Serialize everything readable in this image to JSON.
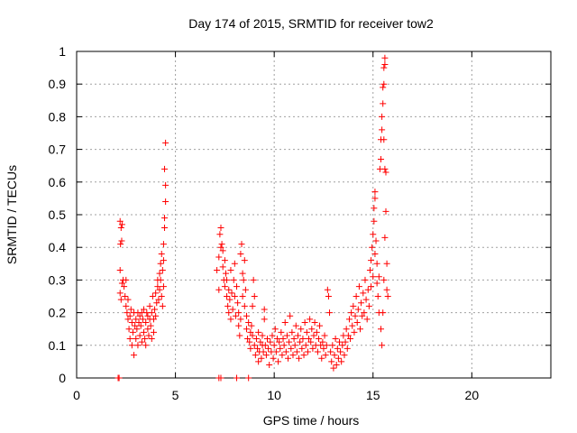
{
  "chart_data": {
    "type": "scatter",
    "title": "Day 174 of 2015, SRMTID for receiver tow2",
    "xlabel": "GPS time / hours",
    "ylabel": "SRMTID / TECUs",
    "xlim": [
      0,
      24
    ],
    "ylim": [
      0,
      1
    ],
    "xticks": [
      0,
      5,
      10,
      15,
      20
    ],
    "yticks": [
      0,
      0.1,
      0.2,
      0.3,
      0.4,
      0.5,
      0.6,
      0.7,
      0.8,
      0.9,
      1
    ],
    "grid": true,
    "marker": "+",
    "color": "#ff0000",
    "series": [
      {
        "name": "SRMTID",
        "points": [
          [
            2.1,
            0.0
          ],
          [
            2.15,
            0.0
          ],
          [
            7.2,
            0.0
          ],
          [
            7.3,
            0.0
          ],
          [
            8.1,
            0.0
          ],
          [
            8.7,
            0.0
          ],
          [
            2.2,
            0.48
          ],
          [
            2.25,
            0.46
          ],
          [
            2.3,
            0.47
          ],
          [
            2.22,
            0.41
          ],
          [
            2.28,
            0.42
          ],
          [
            2.2,
            0.33
          ],
          [
            2.3,
            0.29
          ],
          [
            2.35,
            0.3
          ],
          [
            2.2,
            0.26
          ],
          [
            2.25,
            0.24
          ],
          [
            2.4,
            0.28
          ],
          [
            2.45,
            0.25
          ],
          [
            2.5,
            0.22
          ],
          [
            2.5,
            0.3
          ],
          [
            2.55,
            0.2
          ],
          [
            2.6,
            0.18
          ],
          [
            2.6,
            0.24
          ],
          [
            2.65,
            0.15
          ],
          [
            2.7,
            0.19
          ],
          [
            2.7,
            0.12
          ],
          [
            2.75,
            0.21
          ],
          [
            2.8,
            0.17
          ],
          [
            2.8,
            0.1
          ],
          [
            2.85,
            0.14
          ],
          [
            2.9,
            0.07
          ],
          [
            2.9,
            0.2
          ],
          [
            2.95,
            0.16
          ],
          [
            3.0,
            0.12
          ],
          [
            3.0,
            0.18
          ],
          [
            3.05,
            0.15
          ],
          [
            3.1,
            0.2
          ],
          [
            3.1,
            0.1
          ],
          [
            3.15,
            0.17
          ],
          [
            3.2,
            0.13
          ],
          [
            3.2,
            0.19
          ],
          [
            3.25,
            0.16
          ],
          [
            3.3,
            0.11
          ],
          [
            3.3,
            0.2
          ],
          [
            3.35,
            0.18
          ],
          [
            3.4,
            0.14
          ],
          [
            3.4,
            0.21
          ],
          [
            3.45,
            0.12
          ],
          [
            3.5,
            0.17
          ],
          [
            3.5,
            0.1
          ],
          [
            3.55,
            0.2
          ],
          [
            3.6,
            0.15
          ],
          [
            3.6,
            0.19
          ],
          [
            3.65,
            0.13
          ],
          [
            3.7,
            0.18
          ],
          [
            3.7,
            0.22
          ],
          [
            3.75,
            0.16
          ],
          [
            3.8,
            0.2
          ],
          [
            3.8,
            0.12
          ],
          [
            3.85,
            0.25
          ],
          [
            3.9,
            0.18
          ],
          [
            3.9,
            0.14
          ],
          [
            3.95,
            0.21
          ],
          [
            4.0,
            0.26
          ],
          [
            4.0,
            0.19
          ],
          [
            4.05,
            0.23
          ],
          [
            4.1,
            0.28
          ],
          [
            4.1,
            0.3
          ],
          [
            4.15,
            0.24
          ],
          [
            4.2,
            0.32
          ],
          [
            4.2,
            0.27
          ],
          [
            4.25,
            0.35
          ],
          [
            4.25,
            0.3
          ],
          [
            4.3,
            0.38
          ],
          [
            4.3,
            0.25
          ],
          [
            4.35,
            0.33
          ],
          [
            4.4,
            0.28
          ],
          [
            4.4,
            0.41
          ],
          [
            4.45,
            0.49
          ],
          [
            4.45,
            0.46
          ],
          [
            4.5,
            0.54
          ],
          [
            4.5,
            0.59
          ],
          [
            4.45,
            0.64
          ],
          [
            4.5,
            0.72
          ],
          [
            4.4,
            0.36
          ],
          [
            4.35,
            0.22
          ],
          [
            7.1,
            0.33
          ],
          [
            7.2,
            0.27
          ],
          [
            7.2,
            0.37
          ],
          [
            7.25,
            0.44
          ],
          [
            7.3,
            0.46
          ],
          [
            7.3,
            0.4
          ],
          [
            7.35,
            0.41
          ],
          [
            7.4,
            0.39
          ],
          [
            7.4,
            0.34
          ],
          [
            7.45,
            0.3
          ],
          [
            7.5,
            0.36
          ],
          [
            7.5,
            0.28
          ],
          [
            7.55,
            0.32
          ],
          [
            7.6,
            0.25
          ],
          [
            7.6,
            0.3
          ],
          [
            7.65,
            0.22
          ],
          [
            7.7,
            0.27
          ],
          [
            7.7,
            0.2
          ],
          [
            7.75,
            0.24
          ],
          [
            7.8,
            0.18
          ],
          [
            7.8,
            0.33
          ],
          [
            7.85,
            0.26
          ],
          [
            7.9,
            0.21
          ],
          [
            7.95,
            0.3
          ],
          [
            8.0,
            0.25
          ],
          [
            8.0,
            0.35
          ],
          [
            8.05,
            0.19
          ],
          [
            8.1,
            0.28
          ],
          [
            8.15,
            0.23
          ],
          [
            8.2,
            0.16
          ],
          [
            8.2,
            0.2
          ],
          [
            8.25,
            0.13
          ],
          [
            8.3,
            0.18
          ],
          [
            8.3,
            0.38
          ],
          [
            8.35,
            0.41
          ],
          [
            8.4,
            0.32
          ],
          [
            8.4,
            0.25
          ],
          [
            8.45,
            0.3
          ],
          [
            8.5,
            0.36
          ],
          [
            8.5,
            0.22
          ],
          [
            8.55,
            0.27
          ],
          [
            8.6,
            0.19
          ],
          [
            8.6,
            0.15
          ],
          [
            8.65,
            0.12
          ],
          [
            8.7,
            0.17
          ],
          [
            8.75,
            0.11
          ],
          [
            8.8,
            0.14
          ],
          [
            8.8,
            0.09
          ],
          [
            8.85,
            0.16
          ],
          [
            8.9,
            0.13
          ],
          [
            8.9,
            0.22
          ],
          [
            8.95,
            0.3
          ],
          [
            9.0,
            0.25
          ],
          [
            9.0,
            0.1
          ],
          [
            9.05,
            0.07
          ],
          [
            9.1,
            0.12
          ],
          [
            9.15,
            0.09
          ],
          [
            9.2,
            0.05
          ],
          [
            9.2,
            0.14
          ],
          [
            9.25,
            0.08
          ],
          [
            9.3,
            0.11
          ],
          [
            9.35,
            0.06
          ],
          [
            9.4,
            0.1
          ],
          [
            9.4,
            0.13
          ],
          [
            9.45,
            0.08
          ],
          [
            9.5,
            0.21
          ],
          [
            9.5,
            0.18
          ],
          [
            9.55,
            0.1
          ],
          [
            9.6,
            0.07
          ],
          [
            9.65,
            0.12
          ],
          [
            9.7,
            0.09
          ],
          [
            9.75,
            0.04
          ],
          [
            9.8,
            0.11
          ],
          [
            9.85,
            0.08
          ],
          [
            9.9,
            0.13
          ],
          [
            9.95,
            0.06
          ],
          [
            10.0,
            0.1
          ],
          [
            10.05,
            0.15
          ],
          [
            10.1,
            0.08
          ],
          [
            10.15,
            0.12
          ],
          [
            10.2,
            0.05
          ],
          [
            10.25,
            0.11
          ],
          [
            10.3,
            0.09
          ],
          [
            10.35,
            0.14
          ],
          [
            10.4,
            0.07
          ],
          [
            10.45,
            0.12
          ],
          [
            10.5,
            0.1
          ],
          [
            10.55,
            0.17
          ],
          [
            10.6,
            0.08
          ],
          [
            10.65,
            0.13
          ],
          [
            10.7,
            0.06
          ],
          [
            10.75,
            0.11
          ],
          [
            10.8,
            0.19
          ],
          [
            10.85,
            0.09
          ],
          [
            10.9,
            0.14
          ],
          [
            10.95,
            0.07
          ],
          [
            11.0,
            0.12
          ],
          [
            11.05,
            0.1
          ],
          [
            11.1,
            0.16
          ],
          [
            11.15,
            0.08
          ],
          [
            11.2,
            0.13
          ],
          [
            11.25,
            0.06
          ],
          [
            11.3,
            0.11
          ],
          [
            11.35,
            0.15
          ],
          [
            11.4,
            0.09
          ],
          [
            11.45,
            0.12
          ],
          [
            11.5,
            0.07
          ],
          [
            11.55,
            0.17
          ],
          [
            11.6,
            0.1
          ],
          [
            11.65,
            0.14
          ],
          [
            11.7,
            0.08
          ],
          [
            11.75,
            0.12
          ],
          [
            11.8,
            0.18
          ],
          [
            11.85,
            0.11
          ],
          [
            11.9,
            0.15
          ],
          [
            11.95,
            0.09
          ],
          [
            12.0,
            0.13
          ],
          [
            12.05,
            0.17
          ],
          [
            12.1,
            0.1
          ],
          [
            12.15,
            0.14
          ],
          [
            12.2,
            0.08
          ],
          [
            12.25,
            0.12
          ],
          [
            12.3,
            0.16
          ],
          [
            12.35,
            0.1
          ],
          [
            12.4,
            0.06
          ],
          [
            12.45,
            0.11
          ],
          [
            12.5,
            0.09
          ],
          [
            12.55,
            0.13
          ],
          [
            12.6,
            0.07
          ],
          [
            12.65,
            0.1
          ],
          [
            12.7,
            0.27
          ],
          [
            12.75,
            0.25
          ],
          [
            12.8,
            0.2
          ],
          [
            12.85,
            0.08
          ],
          [
            12.9,
            0.05
          ],
          [
            12.95,
            0.1
          ],
          [
            13.0,
            0.03
          ],
          [
            13.05,
            0.07
          ],
          [
            13.1,
            0.12
          ],
          [
            13.15,
            0.04
          ],
          [
            13.2,
            0.09
          ],
          [
            13.25,
            0.06
          ],
          [
            13.3,
            0.11
          ],
          [
            13.35,
            0.08
          ],
          [
            13.4,
            0.05
          ],
          [
            13.45,
            0.1
          ],
          [
            13.5,
            0.13
          ],
          [
            13.55,
            0.07
          ],
          [
            13.6,
            0.11
          ],
          [
            13.65,
            0.15
          ],
          [
            13.7,
            0.09
          ],
          [
            13.75,
            0.13
          ],
          [
            13.8,
            0.18
          ],
          [
            13.85,
            0.12
          ],
          [
            13.9,
            0.2
          ],
          [
            13.95,
            0.16
          ],
          [
            14.0,
            0.22
          ],
          [
            14.05,
            0.14
          ],
          [
            14.1,
            0.19
          ],
          [
            14.15,
            0.25
          ],
          [
            14.2,
            0.17
          ],
          [
            14.25,
            0.21
          ],
          [
            14.3,
            0.28
          ],
          [
            14.35,
            0.15
          ],
          [
            14.4,
            0.23
          ],
          [
            14.45,
            0.19
          ],
          [
            14.5,
            0.26
          ],
          [
            14.55,
            0.2
          ],
          [
            14.6,
            0.3
          ],
          [
            14.65,
            0.24
          ],
          [
            14.7,
            0.18
          ],
          [
            14.75,
            0.27
          ],
          [
            14.8,
            0.22
          ],
          [
            14.85,
            0.33
          ],
          [
            14.9,
            0.28
          ],
          [
            14.9,
            0.36
          ],
          [
            14.95,
            0.4
          ],
          [
            15.0,
            0.31
          ],
          [
            15.0,
            0.44
          ],
          [
            15.05,
            0.48
          ],
          [
            15.05,
            0.52
          ],
          [
            15.1,
            0.57
          ],
          [
            15.1,
            0.55
          ],
          [
            15.1,
            0.38
          ],
          [
            15.15,
            0.42
          ],
          [
            15.2,
            0.35
          ],
          [
            15.2,
            0.29
          ],
          [
            15.25,
            0.25
          ],
          [
            15.3,
            0.2
          ],
          [
            15.3,
            0.31
          ],
          [
            15.35,
            0.64
          ],
          [
            15.4,
            0.67
          ],
          [
            15.4,
            0.73
          ],
          [
            15.45,
            0.76
          ],
          [
            15.45,
            0.8
          ],
          [
            15.5,
            0.84
          ],
          [
            15.5,
            0.89
          ],
          [
            15.55,
            0.9
          ],
          [
            15.55,
            0.95
          ],
          [
            15.6,
            0.98
          ],
          [
            15.6,
            0.96
          ],
          [
            15.55,
            0.73
          ],
          [
            15.6,
            0.64
          ],
          [
            15.65,
            0.63
          ],
          [
            15.65,
            0.51
          ],
          [
            15.6,
            0.43
          ],
          [
            15.7,
            0.35
          ],
          [
            15.7,
            0.27
          ],
          [
            15.75,
            0.25
          ],
          [
            15.4,
            0.15
          ],
          [
            15.45,
            0.1
          ],
          [
            15.5,
            0.2
          ],
          [
            15.55,
            0.3
          ]
        ]
      }
    ]
  }
}
